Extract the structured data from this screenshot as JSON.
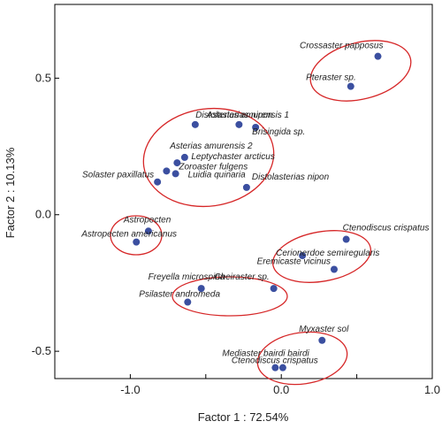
{
  "chart_data": {
    "type": "scatter",
    "xlabel": "Factor 1 : 72.54%",
    "ylabel": "Factor 2 : 10.13%",
    "xlim": [
      -1.5,
      1.0
    ],
    "ylim": [
      -0.6,
      0.77
    ],
    "xticks": [
      {
        "value": -1.0,
        "label": "-1.0"
      },
      {
        "value": -0.5,
        "label": ""
      },
      {
        "value": 0.0,
        "label": "0.0"
      },
      {
        "value": 0.5,
        "label": ""
      },
      {
        "value": 1.0,
        "label": "1.0"
      }
    ],
    "yticks": [
      {
        "value": 0.5,
        "label": "0.5"
      },
      {
        "value": 0.0,
        "label": "0.0"
      },
      {
        "value": -0.5,
        "label": "-0.5"
      }
    ],
    "grid": false,
    "marker_color": "#3b4fa0",
    "ellipse_color": "#d62728",
    "points": [
      {
        "label": "Crossaster papposus",
        "x": 0.64,
        "y": 0.58
      },
      {
        "label": "Pteraster sp.",
        "x": 0.46,
        "y": 0.47
      },
      {
        "label": "Distolasterias nipon",
        "x": -0.57,
        "y": 0.33
      },
      {
        "label": "Asterias amurensis 1",
        "x": -0.28,
        "y": 0.33
      },
      {
        "label": "Brisingida sp.",
        "x": -0.17,
        "y": 0.32
      },
      {
        "label": "Asterias amurensis 2",
        "x": -0.64,
        "y": 0.21
      },
      {
        "label": "Leptychaster arcticus",
        "x": -0.69,
        "y": 0.19
      },
      {
        "label": "Zoroaster fulgens",
        "x": -0.76,
        "y": 0.16
      },
      {
        "label": "Luidia quinaria",
        "x": -0.7,
        "y": 0.15
      },
      {
        "label": "Solaster paxillatus",
        "x": -0.82,
        "y": 0.12
      },
      {
        "label": "Distolasterias nipon",
        "x": -0.23,
        "y": 0.1
      },
      {
        "label": "Astropecten",
        "x": -0.88,
        "y": -0.06
      },
      {
        "label": "Astropecten americanus",
        "x": -0.96,
        "y": -0.1
      },
      {
        "label": "Ctenodiscus crispatus",
        "x": 0.43,
        "y": -0.09
      },
      {
        "label": "Cerionerdoe semiregularis",
        "x": 0.14,
        "y": -0.15
      },
      {
        "label": "Eremicaste vicinus",
        "x": 0.35,
        "y": -0.2
      },
      {
        "label": "Freyella microspina",
        "x": -0.53,
        "y": -0.27
      },
      {
        "label": "Cheiraster sp.",
        "x": -0.05,
        "y": -0.27
      },
      {
        "label": "Psilaster andromeda",
        "x": -0.62,
        "y": -0.32
      },
      {
        "label": "Myxaster sol",
        "x": 0.27,
        "y": -0.46
      },
      {
        "label": "Mediaster bairdi bairdi",
        "x": -0.04,
        "y": -0.56
      },
      {
        "label": "Ctenodiscus crispatus",
        "x": 0.01,
        "y": -0.56
      }
    ]
  }
}
